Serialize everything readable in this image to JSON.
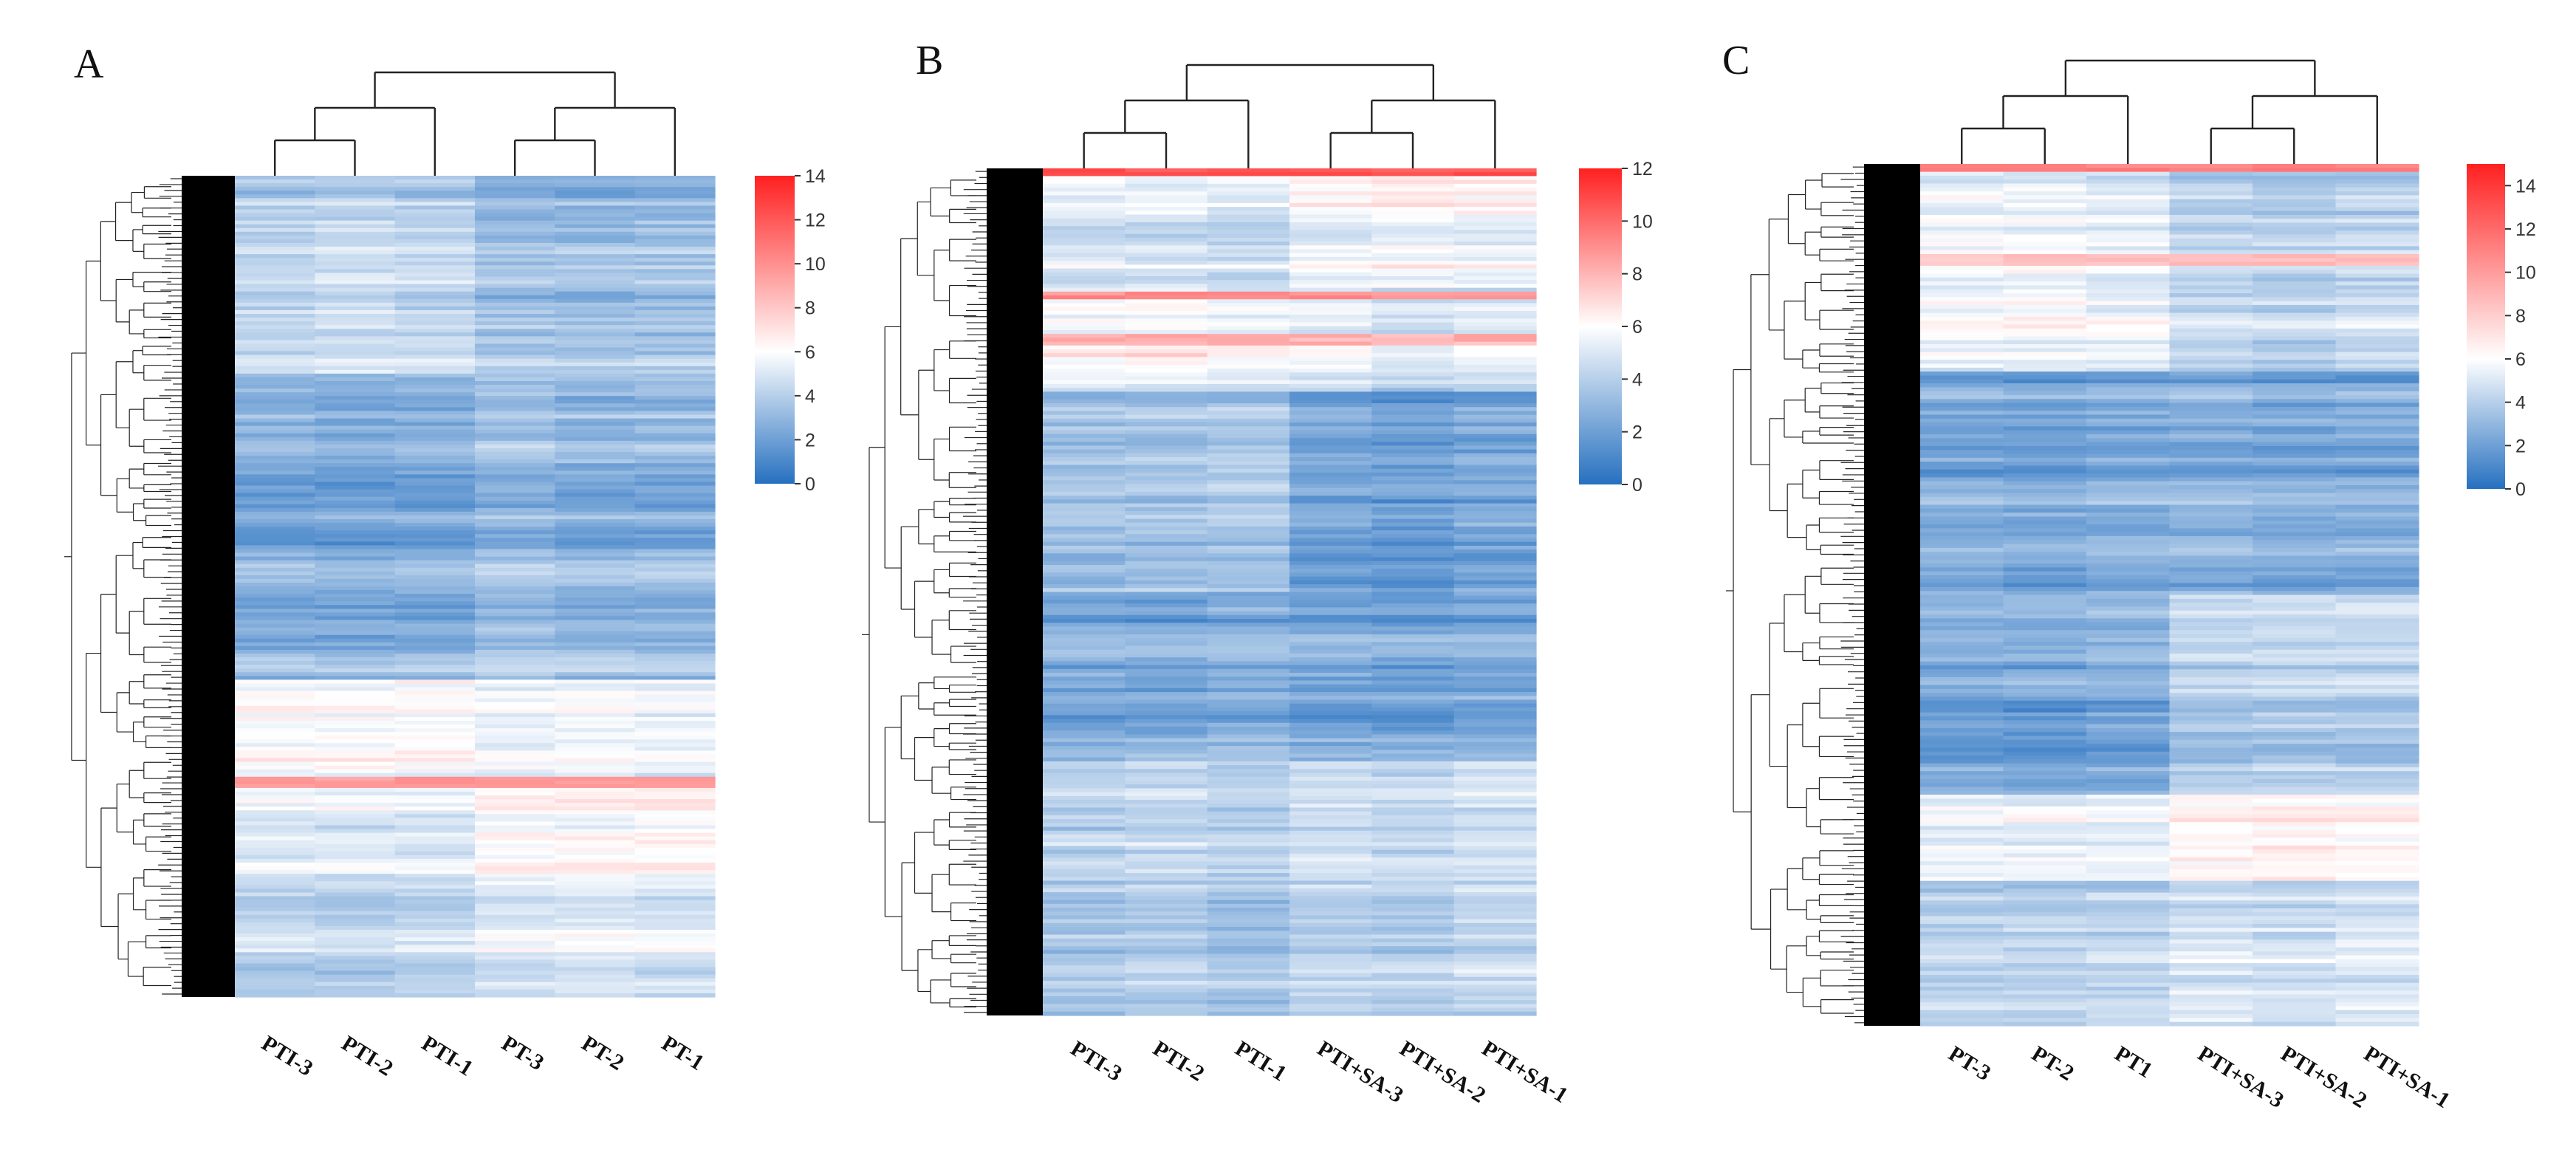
{
  "chart_data": [
    {
      "panel": "A",
      "type": "heatmap",
      "title": "",
      "xlabel": "",
      "ylabel": "",
      "columns": [
        "PTI-3",
        "PTI-2",
        "PTI-1",
        "PT-3",
        "PT-2",
        "PT-1"
      ],
      "color_scale": {
        "min": 0,
        "max": 14,
        "ticks": [
          "0",
          "2",
          "4",
          "6",
          "8",
          "10",
          "12",
          "14"
        ],
        "colors": [
          "#2670c0",
          "#ffffff",
          "#ff2020"
        ]
      },
      "row_profile": [
        {
          "until": 0.24,
          "levels": [
            4.2,
            4.5,
            4.3,
            3.4,
            3.3,
            3.5
          ]
        },
        {
          "until": 0.61,
          "levels": [
            2.6,
            2.4,
            2.5,
            3.2,
            2.8,
            2.9
          ]
        },
        {
          "until": 0.74,
          "levels": [
            6.1,
            6.0,
            6.2,
            5.6,
            5.7,
            5.5
          ]
        },
        {
          "until": 0.85,
          "levels": [
            5.2,
            5.1,
            5.0,
            6.0,
            6.1,
            6.2
          ]
        },
        {
          "until": 1.0,
          "levels": [
            3.9,
            3.8,
            4.0,
            4.8,
            4.9,
            4.7
          ]
        }
      ],
      "highlight_rows": [
        {
          "at": 0.735,
          "level": 9.5
        }
      ]
    },
    {
      "panel": "B",
      "type": "heatmap",
      "title": "",
      "xlabel": "",
      "ylabel": "",
      "columns": [
        "PTI-3",
        "PTI-2",
        "PTI-1",
        "PTI+SA-3",
        "PTI+SA-2",
        "PTI+SA-1"
      ],
      "color_scale": {
        "min": 0,
        "max": 12,
        "ticks": [
          "0",
          "2",
          "4",
          "6",
          "8",
          "10",
          "12"
        ],
        "colors": [
          "#2670c0",
          "#ffffff",
          "#ff2020"
        ]
      },
      "row_profile": [
        {
          "until": 0.14,
          "levels": [
            5.4,
            5.3,
            5.0,
            6.0,
            6.2,
            6.1
          ]
        },
        {
          "until": 0.26,
          "levels": [
            5.6,
            5.8,
            5.4,
            5.2,
            4.6,
            4.9
          ]
        },
        {
          "until": 0.5,
          "levels": [
            3.5,
            3.6,
            3.8,
            2.2,
            2.0,
            2.4
          ]
        },
        {
          "until": 0.7,
          "levels": [
            2.3,
            2.2,
            2.5,
            2.1,
            1.9,
            2.2
          ]
        },
        {
          "until": 1.0,
          "levels": [
            4.0,
            4.2,
            3.8,
            4.5,
            4.3,
            4.6
          ]
        }
      ],
      "highlight_rows": [
        {
          "at": 0.0,
          "level": 10.5
        },
        {
          "at": 0.148,
          "level": 9.0
        },
        {
          "at": 0.2,
          "level": 8.0
        }
      ]
    },
    {
      "panel": "C",
      "type": "heatmap",
      "title": "",
      "xlabel": "",
      "ylabel": "",
      "columns": [
        "PT-3",
        "PT-2",
        "PT1",
        "PTI+SA-3",
        "PTI+SA-2",
        "PTI+SA-1"
      ],
      "color_scale": {
        "min": 0,
        "max": 15,
        "ticks": [
          "0",
          "2",
          "4",
          "6",
          "8",
          "10",
          "12",
          "14"
        ],
        "colors": [
          "#2670c0",
          "#ffffff",
          "#ff2020"
        ]
      },
      "row_profile": [
        {
          "until": 0.24,
          "levels": [
            5.5,
            5.6,
            5.3,
            4.2,
            4.0,
            4.3
          ]
        },
        {
          "until": 0.5,
          "levels": [
            2.4,
            2.3,
            2.5,
            2.6,
            2.4,
            2.5
          ]
        },
        {
          "until": 0.73,
          "levels": [
            2.5,
            2.4,
            2.6,
            4.0,
            4.2,
            4.1
          ]
        },
        {
          "until": 0.83,
          "levels": [
            5.8,
            5.9,
            5.7,
            6.8,
            7.0,
            6.6
          ]
        },
        {
          "until": 1.0,
          "levels": [
            4.1,
            4.0,
            4.2,
            4.8,
            4.6,
            4.9
          ]
        }
      ],
      "highlight_rows": [
        {
          "at": 0.0,
          "level": 11.0
        },
        {
          "at": 0.11,
          "level": 8.5
        }
      ]
    }
  ]
}
